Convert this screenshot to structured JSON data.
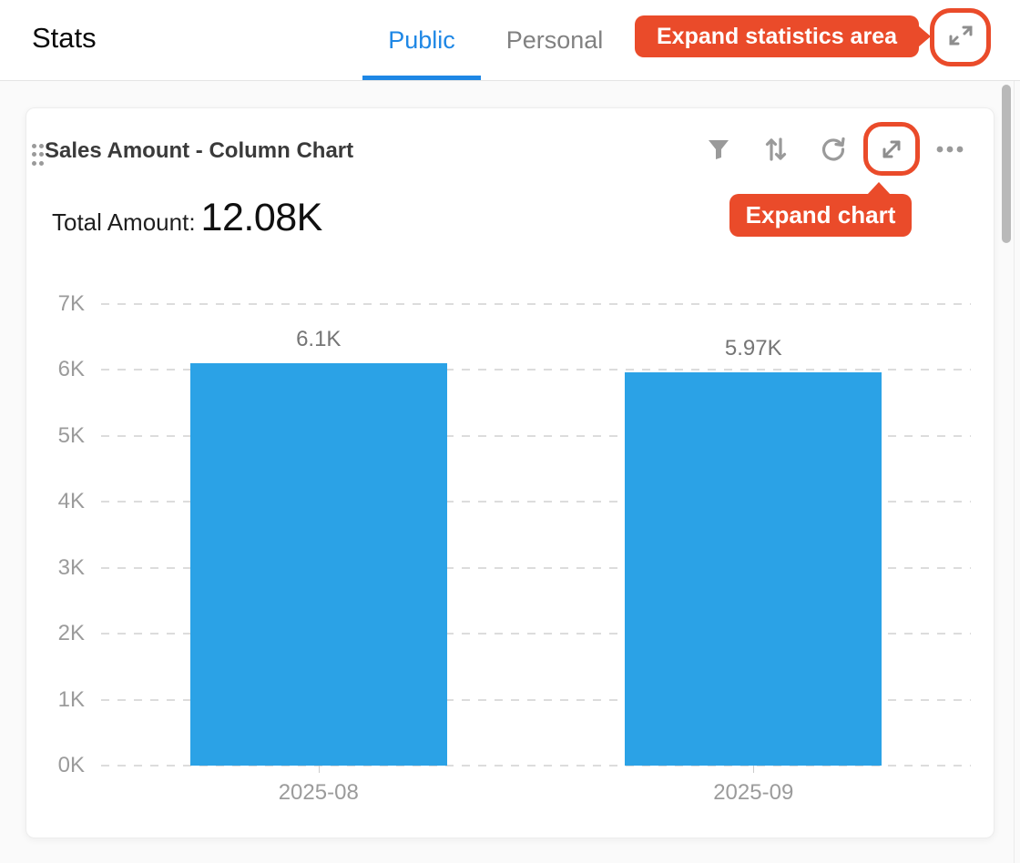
{
  "header": {
    "title": "Stats",
    "tabs": [
      {
        "label": "Public",
        "active": true
      },
      {
        "label": "Personal",
        "active": false
      }
    ],
    "expand_tooltip": "Expand statistics area",
    "expand_icon": "expand-diagonal-arrows-icon"
  },
  "card": {
    "title": "Sales Amount - Column Chart",
    "toolbar_icons": [
      "filter-icon",
      "sort-icon",
      "refresh-icon",
      "expand-icon",
      "more-icon"
    ],
    "expand_tooltip": "Expand chart",
    "total_label": "Total Amount:",
    "total_value": "12.08K"
  },
  "chart_data": {
    "type": "bar",
    "title": "Sales Amount - Column Chart",
    "categories": [
      "2025-08",
      "2025-09"
    ],
    "values": [
      6100,
      5970
    ],
    "value_labels": [
      "6.1K",
      "5.97K"
    ],
    "yticks": [
      "0K",
      "1K",
      "2K",
      "3K",
      "4K",
      "5K",
      "6K",
      "7K"
    ],
    "ylim": [
      0,
      7000
    ],
    "xlabel": "",
    "ylabel": "",
    "grid": "dashed-horizontal",
    "legend": "none",
    "bar_color": "#2ba2e6",
    "bar_width_frac": 0.59
  },
  "colors": {
    "annotation_orange": "#ea4b2a",
    "tab_active_blue": "#1e87e5",
    "bar_blue": "#2ba2e6"
  }
}
